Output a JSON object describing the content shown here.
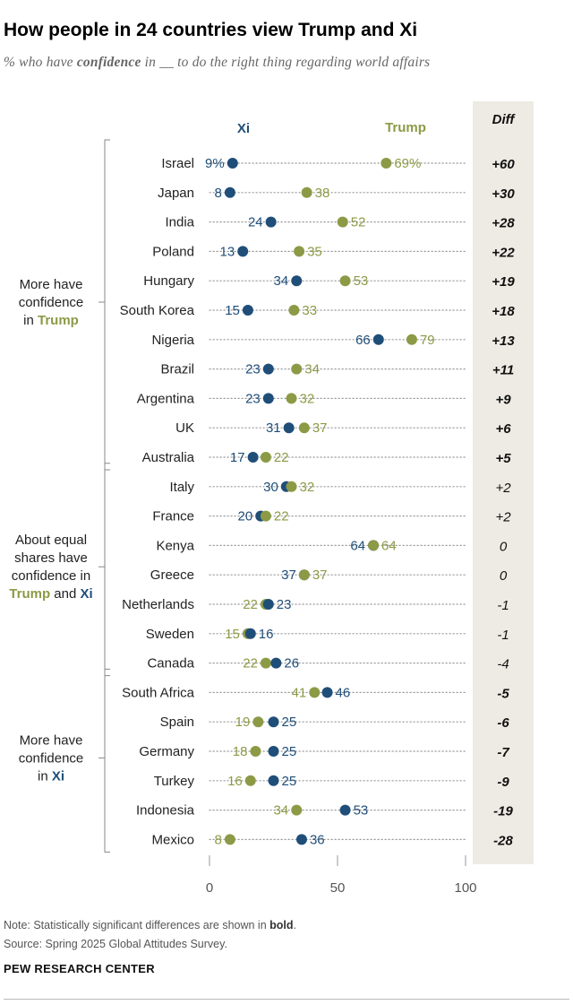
{
  "title": "How people in 24 countries view Trump and Xi",
  "subtitle": {
    "before": "% who have ",
    "bold": "confidence",
    "after": " in __ to do the right thing regarding world affairs"
  },
  "colors": {
    "xi": "#1F4E79",
    "trump": "#8C9A46",
    "diff_panel": "#EEEBE4",
    "label": "#222222",
    "dots_line": "#9A9A9A"
  },
  "groups": [
    {
      "lines": [
        {
          "text": "More have"
        },
        {
          "text": "confidence"
        },
        {
          "prefix": "in ",
          "highlight": "Trump",
          "highlight_series": "trump"
        }
      ]
    },
    {
      "lines": [
        {
          "text": "About equal"
        },
        {
          "text": "shares have"
        },
        {
          "text": "confidence in"
        },
        {
          "highlight": "Trump",
          "highlight_series": "trump",
          "middle": " and ",
          "highlight2": "Xi",
          "highlight2_series": "xi"
        }
      ]
    },
    {
      "lines": [
        {
          "text": "More have"
        },
        {
          "text": "confidence"
        },
        {
          "prefix": "in ",
          "highlight": "Xi",
          "highlight_series": "xi"
        }
      ]
    }
  ],
  "chart_data": {
    "type": "dot",
    "series": [
      {
        "key": "xi",
        "name": "Xi"
      },
      {
        "key": "trump",
        "name": "Trump"
      }
    ],
    "diff_header": "Diff",
    "xlim": [
      0,
      100
    ],
    "xticks": [
      0,
      50,
      100
    ],
    "rows": [
      {
        "country": "Israel",
        "xi": 9,
        "xi_label": "9%",
        "trump": 69,
        "trump_label": "69%",
        "diff": "+60",
        "sig": true,
        "group": 0
      },
      {
        "country": "Japan",
        "xi": 8,
        "xi_label": "8",
        "trump": 38,
        "trump_label": "38",
        "diff": "+30",
        "sig": true,
        "group": 0
      },
      {
        "country": "India",
        "xi": 24,
        "xi_label": "24",
        "trump": 52,
        "trump_label": "52",
        "diff": "+28",
        "sig": true,
        "group": 0
      },
      {
        "country": "Poland",
        "xi": 13,
        "xi_label": "13",
        "trump": 35,
        "trump_label": "35",
        "diff": "+22",
        "sig": true,
        "group": 0
      },
      {
        "country": "Hungary",
        "xi": 34,
        "xi_label": "34",
        "trump": 53,
        "trump_label": "53",
        "diff": "+19",
        "sig": true,
        "group": 0
      },
      {
        "country": "South Korea",
        "xi": 15,
        "xi_label": "15",
        "trump": 33,
        "trump_label": "33",
        "diff": "+18",
        "sig": true,
        "group": 0
      },
      {
        "country": "Nigeria",
        "xi": 66,
        "xi_label": "66",
        "trump": 79,
        "trump_label": "79",
        "diff": "+13",
        "sig": true,
        "group": 0
      },
      {
        "country": "Brazil",
        "xi": 23,
        "xi_label": "23",
        "trump": 34,
        "trump_label": "34",
        "diff": "+11",
        "sig": true,
        "group": 0
      },
      {
        "country": "Argentina",
        "xi": 23,
        "xi_label": "23",
        "trump": 32,
        "trump_label": "32",
        "diff": "+9",
        "sig": true,
        "group": 0
      },
      {
        "country": "UK",
        "xi": 31,
        "xi_label": "31",
        "trump": 37,
        "trump_label": "37",
        "diff": "+6",
        "sig": true,
        "group": 0
      },
      {
        "country": "Australia",
        "xi": 17,
        "xi_label": "17",
        "trump": 22,
        "trump_label": "22",
        "diff": "+5",
        "sig": true,
        "group": 0
      },
      {
        "country": "Italy",
        "xi": 30,
        "xi_label": "30",
        "trump": 32,
        "trump_label": "32",
        "diff": "+2",
        "sig": false,
        "group": 1
      },
      {
        "country": "France",
        "xi": 20,
        "xi_label": "20",
        "trump": 22,
        "trump_label": "22",
        "diff": "+2",
        "sig": false,
        "group": 1
      },
      {
        "country": "Kenya",
        "xi": 64,
        "xi_label": "64",
        "trump": 64,
        "trump_label": "64",
        "diff": "0",
        "sig": false,
        "group": 1
      },
      {
        "country": "Greece",
        "xi": 37,
        "xi_label": "37",
        "trump": 37,
        "trump_label": "37",
        "diff": "0",
        "sig": false,
        "group": 1
      },
      {
        "country": "Netherlands",
        "xi": 23,
        "xi_label": "23",
        "trump": 22,
        "trump_label": "22",
        "diff": "-1",
        "sig": false,
        "group": 1
      },
      {
        "country": "Sweden",
        "xi": 16,
        "xi_label": "16",
        "trump": 15,
        "trump_label": "15",
        "diff": "-1",
        "sig": false,
        "group": 1
      },
      {
        "country": "Canada",
        "xi": 26,
        "xi_label": "26",
        "trump": 22,
        "trump_label": "22",
        "diff": "-4",
        "sig": false,
        "group": 1
      },
      {
        "country": "South Africa",
        "xi": 46,
        "xi_label": "46",
        "trump": 41,
        "trump_label": "41",
        "diff": "-5",
        "sig": true,
        "group": 2
      },
      {
        "country": "Spain",
        "xi": 25,
        "xi_label": "25",
        "trump": 19,
        "trump_label": "19",
        "diff": "-6",
        "sig": true,
        "group": 2
      },
      {
        "country": "Germany",
        "xi": 25,
        "xi_label": "25",
        "trump": 18,
        "trump_label": "18",
        "diff": "-7",
        "sig": true,
        "group": 2
      },
      {
        "country": "Turkey",
        "xi": 25,
        "xi_label": "25",
        "trump": 16,
        "trump_label": "16",
        "diff": "-9",
        "sig": true,
        "group": 2
      },
      {
        "country": "Indonesia",
        "xi": 53,
        "xi_label": "53",
        "trump": 34,
        "trump_label": "34",
        "diff": "-19",
        "sig": true,
        "group": 2
      },
      {
        "country": "Mexico",
        "xi": 36,
        "xi_label": "36",
        "trump": 8,
        "trump_label": "8",
        "diff": "-28",
        "sig": true,
        "group": 2
      }
    ]
  },
  "note": {
    "before": "Note: Statistically significant differences are shown in ",
    "bold": "bold",
    "after": "."
  },
  "source": "Source: Spring 2025 Global Attitudes Survey.",
  "brand": "PEW RESEARCH CENTER"
}
